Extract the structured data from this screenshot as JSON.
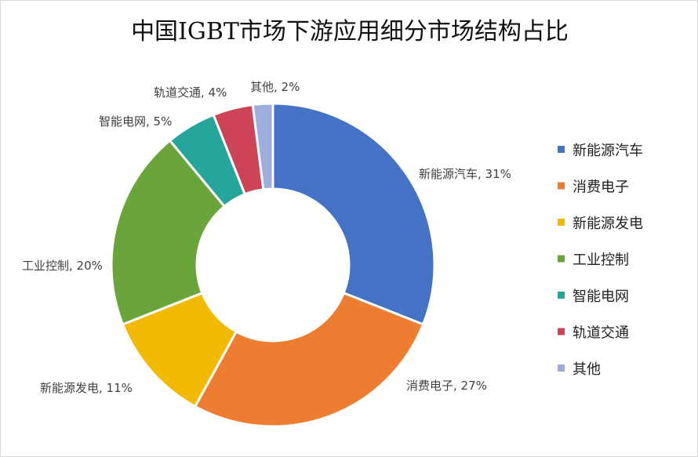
{
  "chart_data": {
    "type": "pie",
    "variant": "donut",
    "title": "中国IGBT市场下游应用细分市场结构占比",
    "categories": [
      "新能源汽车",
      "消费电子",
      "新能源发电",
      "工业控制",
      "智能电网",
      "轨道交通",
      "其他"
    ],
    "values": [
      31,
      27,
      11,
      20,
      5,
      4,
      2
    ],
    "unit": "%",
    "data_labels": [
      "新能源汽车, 31%",
      "消费电子, 27%",
      "新能源发电, 11%",
      "工业控制, 20%",
      "智能电网, 5%",
      "轨道交通, 4%",
      "其他, 2%"
    ],
    "colors": [
      "#4472C4",
      "#ED7D31",
      "#F2BA00",
      "#6AA53B",
      "#26A69A",
      "#CC4455",
      "#9EAEDC"
    ],
    "legend": "right",
    "start_angle": "12 o'clock, clockwise"
  }
}
